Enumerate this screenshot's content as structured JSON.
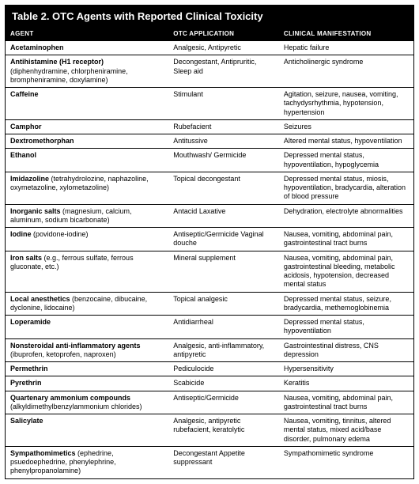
{
  "title": "Table 2. OTC Agents with Reported Clinical Toxicity",
  "headers": {
    "agent": "Agent",
    "application": "OTC Application",
    "manifestation": "Clinical Manifestation"
  },
  "rows": [
    {
      "agent_main": "Acetaminophen",
      "agent_sub": "",
      "application": "Analgesic, Antipyretic",
      "manifestation": "Hepatic failure"
    },
    {
      "agent_main": "Antihistamine (H1 receptor)",
      "agent_sub": " (diphenhydramine, chlorpheniramine, brompheniramine, doxylamine)",
      "application": "Decongestant, Antipruritic, Sleep aid",
      "manifestation": "Anticholinergic syndrome"
    },
    {
      "agent_main": "Caffeine",
      "agent_sub": "",
      "application": "Stimulant",
      "manifestation": "Agitation, seizure, nausea, vomiting, tachydysrhythmia, hypotension, hypertension"
    },
    {
      "agent_main": "Camphor",
      "agent_sub": "",
      "application": "Rubefacient",
      "manifestation": "Seizures"
    },
    {
      "agent_main": "Dextromethorphan",
      "agent_sub": "",
      "application": "Antitussive",
      "manifestation": "Altered mental status, hypoventilation"
    },
    {
      "agent_main": "Ethanol",
      "agent_sub": "",
      "application": "Mouthwash/ Germicide",
      "manifestation": "Depressed mental status, hypoventilation, hypoglycemia"
    },
    {
      "agent_main": "Imidazoline",
      "agent_sub": " (tetrahydrolozine, naphazoline, oxymetazoline, xylometazoline)",
      "application": "Topical decongestant",
      "manifestation": "Depressed mental status, miosis, hypoventilation, bradycardia, alteration of blood pressure"
    },
    {
      "agent_main": "Inorganic salts",
      "agent_sub": " (magnesium, calcium, aluminum, sodium bicarbonate)",
      "application": "Antacid Laxative",
      "manifestation": "Dehydration, electrolyte abnormalities"
    },
    {
      "agent_main": "Iodine",
      "agent_sub": " (povidone-iodine)",
      "application": "Antiseptic/Germicide Vaginal douche",
      "manifestation": "Nausea, vomiting, abdominal pain, gastrointestinal tract burns"
    },
    {
      "agent_main": "Iron salts",
      "agent_sub": " (e.g., ferrous sulfate, ferrous gluconate, etc.)",
      "application": "Mineral supplement",
      "manifestation": "Nausea, vomiting, abdominal pain, gastrointestinal bleeding, metabolic acidosis, hypotension, decreased mental status"
    },
    {
      "agent_main": "Local anesthetics",
      "agent_sub": " (benzocaine, dibucaine, dyclonine, lidocaine)",
      "application": "Topical analgesic",
      "manifestation": "Depressed mental status, seizure, bradycardia, methemoglobinemia"
    },
    {
      "agent_main": "Loperamide",
      "agent_sub": "",
      "application": "Antidiarrheal",
      "manifestation": "Depressed mental status, hypoventilation"
    },
    {
      "agent_main": "Nonsteroidal anti-inflammatory agents",
      "agent_sub": " (ibuprofen, ketoprofen, naproxen)",
      "application": "Analgesic, anti-inflammatory, antipyretic",
      "manifestation": "Gastrointestinal distress, CNS depression"
    },
    {
      "agent_main": "Permethrin",
      "agent_sub": "",
      "application": "Pediculocide",
      "manifestation": "Hypersensitivity"
    },
    {
      "agent_main": "Pyrethrin",
      "agent_sub": "",
      "application": "Scabicide",
      "manifestation": "Keratitis"
    },
    {
      "agent_main": "Quartenary ammonium compounds",
      "agent_sub": " (alkyldimethylbenzylammonium chlorides)",
      "application": "Antiseptic/Germicide",
      "manifestation": "Nausea, vomiting, abdominal pain, gastrointestinal tract burns"
    },
    {
      "agent_main": "Salicylate",
      "agent_sub": "",
      "application": "Analgesic, antipyretic rubefacient, keratolytic",
      "manifestation": "Nausea, vomiting, tinnitus, altered mental status, mixed acid/base disorder, pulmonary edema"
    },
    {
      "agent_main": "Sympathomimetics",
      "agent_sub": " (ephedrine, psuedoephedrine, phenylephrine, phenylpropanolamine)",
      "application": "Decongestant Appetite suppressant",
      "manifestation": "Sympathomimetic syndrome"
    }
  ]
}
